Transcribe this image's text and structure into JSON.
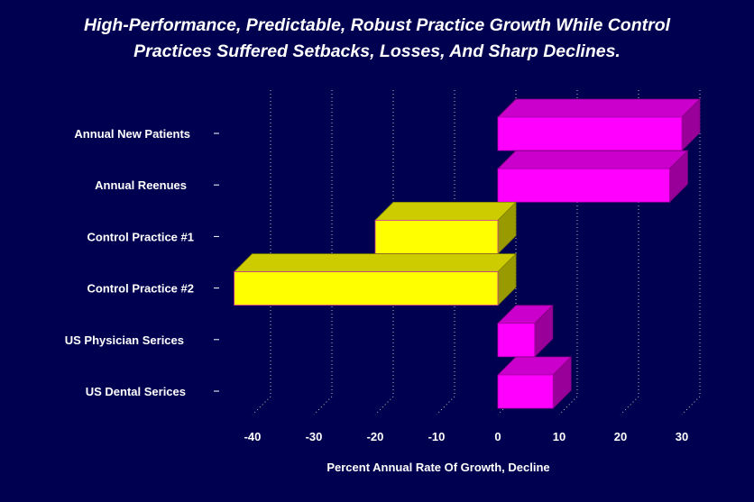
{
  "chart_data": {
    "type": "bar",
    "orientation": "horizontal",
    "title_lines": [
      "High-Performance, Predictable, Robust Practice Growth While Control",
      "Practices Suffered Setbacks, Losses, And Sharp Declines."
    ],
    "xlabel": "Percent Annual Rate Of Growth, Decline",
    "ylabel": "",
    "categories": [
      "Annual New Patients",
      "Annual Reenues",
      "Control Practice #1",
      "Control Practice #2",
      "US Physician Serices",
      "US Dental Serices"
    ],
    "values": [
      30,
      28,
      -20,
      -43,
      6,
      9
    ],
    "xlim": [
      -43,
      33
    ],
    "xticks": [
      -40,
      -30,
      -20,
      -10,
      0,
      10,
      20,
      30
    ],
    "grid": true,
    "colors": {
      "background": "#000050",
      "positive": "#ff00ff",
      "positive_top": "#cc00cc",
      "positive_side": "#990099",
      "negative": "#ffff00",
      "negative_top": "#cccc00",
      "negative_side": "#999900"
    }
  }
}
